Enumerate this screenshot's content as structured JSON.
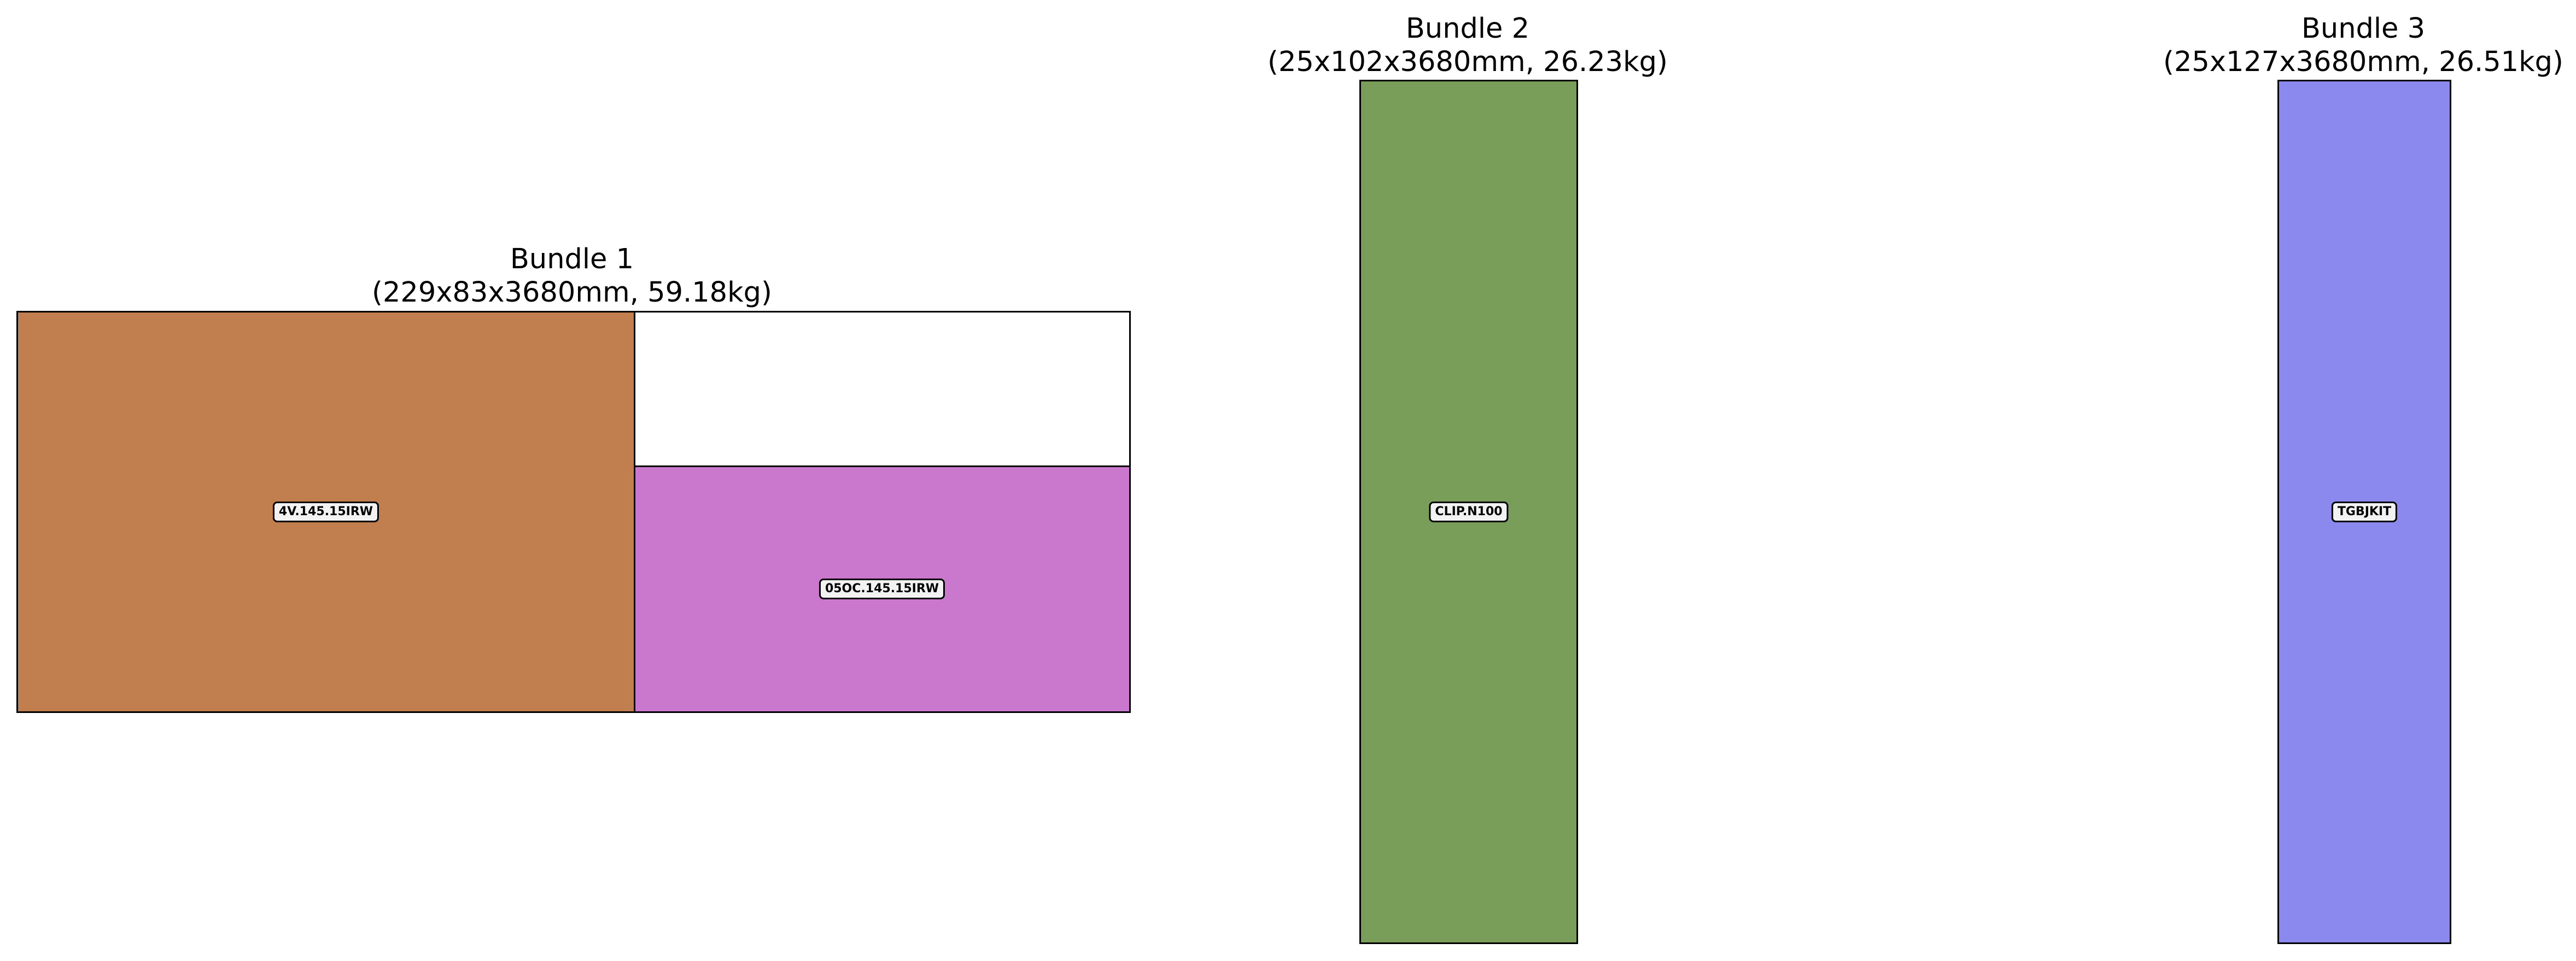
{
  "bundles": [
    {
      "name": "Bundle 1",
      "spec": "(229x83x3680mm, 59.18kg)",
      "pieces": [
        {
          "code": "4V.145.15IRW",
          "color": "#c17e4f"
        },
        {
          "code": "05OC.145.15IRW",
          "color": "#c978ce"
        }
      ]
    },
    {
      "name": "Bundle 2",
      "spec": "(25x102x3680mm, 26.23kg)",
      "pieces": [
        {
          "code": "CLIP.N100",
          "color": "#789e5a"
        }
      ]
    },
    {
      "name": "Bundle 3",
      "spec": "(25x127x3680mm, 26.51kg)",
      "pieces": [
        {
          "code": "TGBJKIT",
          "color": "#8c89ee"
        }
      ]
    }
  ]
}
